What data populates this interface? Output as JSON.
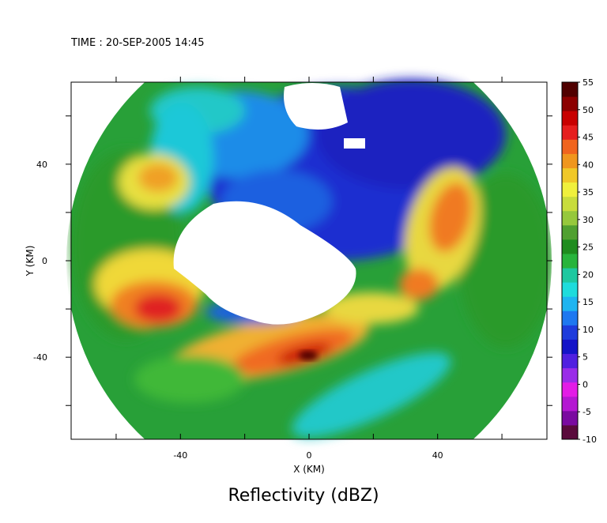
{
  "time_label": "TIME : 20-SEP-2005 14:45",
  "chart_data": {
    "type": "heatmap",
    "title": "Reflectivity (dBZ)",
    "xlabel": "X (KM)",
    "ylabel": "Y (KM)",
    "xlim": [
      -74,
      74
    ],
    "ylim": [
      -74,
      74
    ],
    "x_ticks": [
      -40,
      0,
      40
    ],
    "y_ticks": [
      40,
      0,
      -40
    ],
    "radar_range_km": 74,
    "eye_center_km": [
      -14,
      0
    ],
    "colorbar": {
      "label_values": [
        55,
        50,
        45,
        40,
        35,
        30,
        25,
        20,
        15,
        10,
        5,
        0,
        -5,
        -10
      ],
      "min": -10,
      "max": 55,
      "colors": [
        "#5a0a3c",
        "#7a0aa0",
        "#b418d2",
        "#e31ce6",
        "#9a2ce8",
        "#5020e0",
        "#1414c8",
        "#1e3cdc",
        "#1e78f0",
        "#1eb4f0",
        "#1edcdc",
        "#1ec8a0",
        "#28b43c",
        "#1e8c1e",
        "#50a030",
        "#96c83c",
        "#c8dc3c",
        "#f0f03c",
        "#f0c828",
        "#f0961e",
        "#f0641e",
        "#e61e1e",
        "#c80000",
        "#8c0000",
        "#500000"
      ]
    }
  }
}
